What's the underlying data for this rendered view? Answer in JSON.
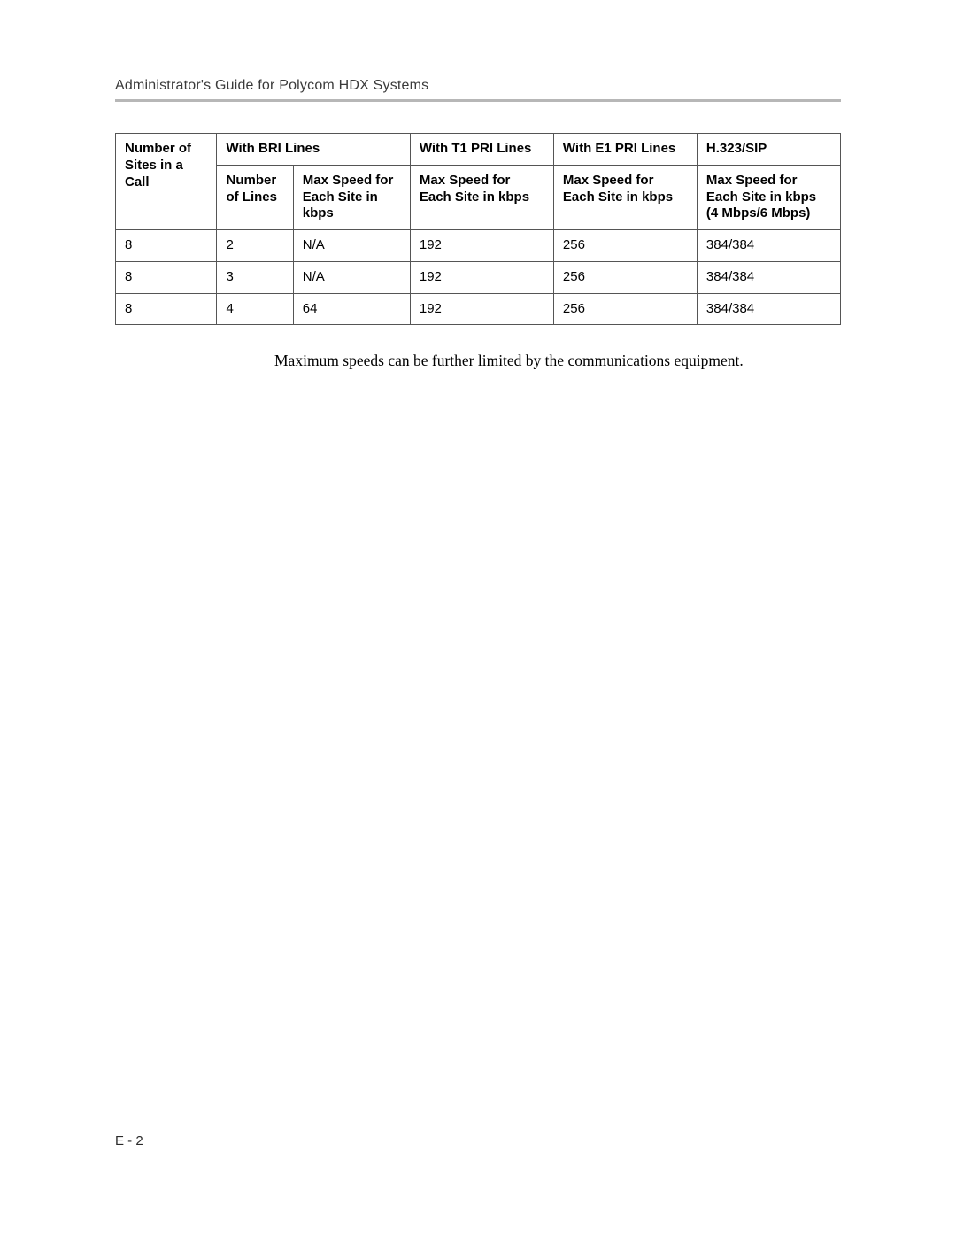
{
  "header": {
    "running_title": "Administrator's Guide for Polycom HDX Systems"
  },
  "table": {
    "columns": {
      "c1": "Number of Sites in a Call",
      "group_bri": "With BRI Lines",
      "c2": "Number of Lines",
      "c3": "Max Speed for Each Site in kbps",
      "group_t1": "With T1 PRI Lines",
      "c4": "Max Speed for Each Site in kbps",
      "group_e1": "With E1 PRI Lines",
      "c5": "Max Speed for Each Site in kbps",
      "group_h323": "H.323/SIP",
      "c6": "Max Speed for Each Site in kbps (4 Mbps/6 Mbps)"
    },
    "rows": [
      {
        "sites": "8",
        "lines": "2",
        "bri_speed": "N/A",
        "t1_speed": "192",
        "e1_speed": "256",
        "h323_speed": "384/384"
      },
      {
        "sites": "8",
        "lines": "3",
        "bri_speed": "N/A",
        "t1_speed": "192",
        "e1_speed": "256",
        "h323_speed": "384/384"
      },
      {
        "sites": "8",
        "lines": "4",
        "bri_speed": "64",
        "t1_speed": "192",
        "e1_speed": "256",
        "h323_speed": "384/384"
      }
    ]
  },
  "caption": "Maximum speeds can be further limited by the communications equipment.",
  "footer": {
    "page_number": "E - 2"
  },
  "style": {
    "page_bg": "#ffffff",
    "text_color": "#000000",
    "rule_color": "#b7b7b7",
    "border_color": "#555555",
    "header_font_size_pt": 12,
    "table_font_size_pt": 11,
    "caption_font_size_pt": 13
  }
}
